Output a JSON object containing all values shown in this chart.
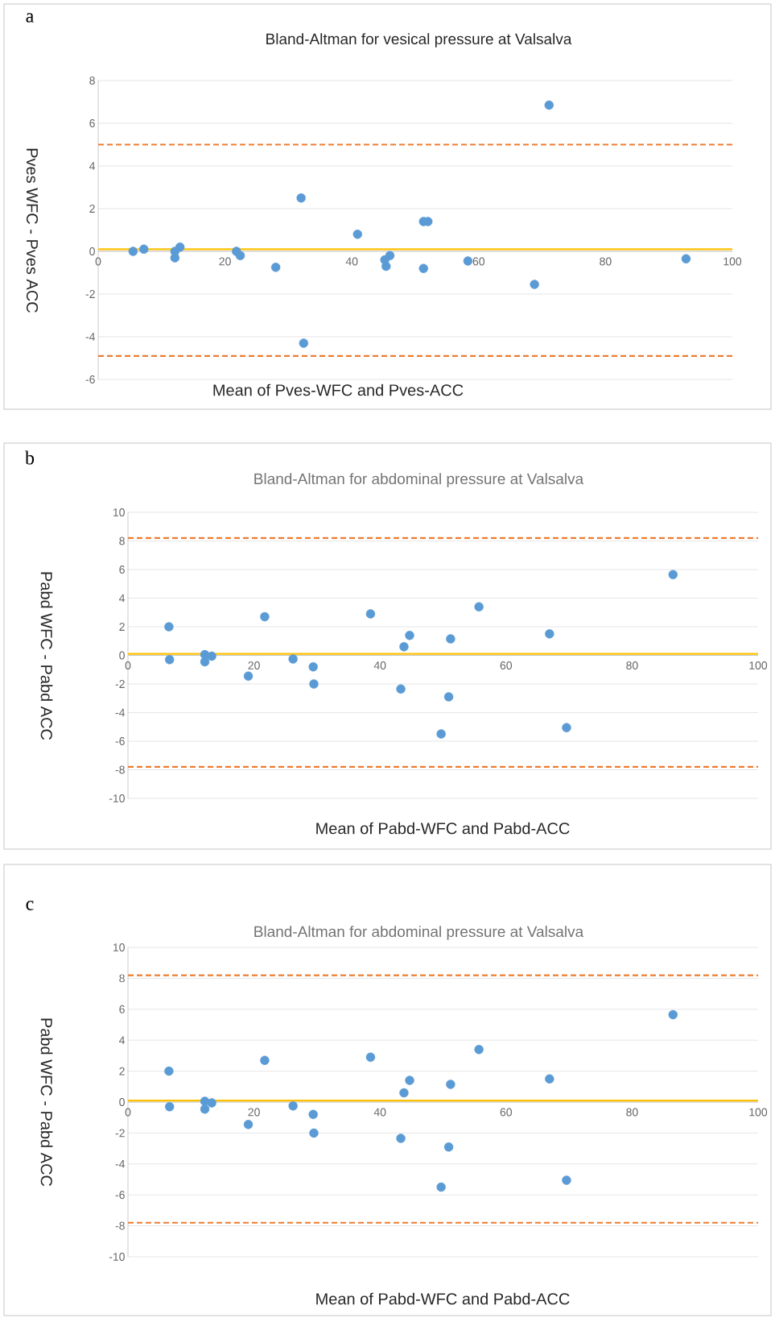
{
  "chart_data": [
    {
      "type": "scatter",
      "title": "Bland-Altman for vesical pressure at Valsalva",
      "xlabel": "Mean of Pves-WFC and Pves-ACC",
      "ylabel": "Pves WFC - Pves ACC",
      "annotations": [
        "a"
      ],
      "xlim": [
        0,
        100
      ],
      "ylim": [
        -6,
        8
      ],
      "xticks": [
        0,
        20,
        40,
        60,
        80,
        100
      ],
      "yticks": [
        -6,
        -4,
        -2,
        0,
        2,
        4,
        6,
        8
      ],
      "grid": "y",
      "marker": "circle",
      "series": [
        {
          "color": "#5b9bd5",
          "x": [
            5.5,
            7.2,
            12.1,
            12.1,
            12.9,
            21.8,
            22.4,
            28.0,
            32.0,
            32.4,
            40.9,
            45.2,
            45.4,
            46.0,
            51.3,
            51.3,
            52.0,
            58.3,
            68.8,
            71.1,
            92.7
          ],
          "values": [
            0,
            0.1,
            0,
            -0.3,
            0.2,
            0,
            -0.2,
            -0.75,
            2.5,
            -4.3,
            0.8,
            -0.4,
            -0.7,
            -0.2,
            -0.8,
            1.4,
            1.4,
            -0.45,
            -1.55,
            6.85,
            -0.35
          ]
        }
      ],
      "ref_lines": [
        {
          "axis": "y",
          "value": 5.0,
          "color": "#ed7d31",
          "line_style": "dashed"
        },
        {
          "axis": "y",
          "value": -4.9,
          "color": "#ed7d31",
          "line_style": "dashed"
        },
        {
          "axis": "y",
          "value": 0.1,
          "color": "#ffc000",
          "line_style": "solid"
        }
      ]
    },
    {
      "type": "scatter",
      "title": "Bland-Altman for abdominal pressure at Valsalva",
      "xlabel": "Mean of Pabd-WFC and Pabd-ACC",
      "ylabel": "Pabd WFC - Pabd ACC",
      "annotations": [
        "b"
      ],
      "xlim": [
        0,
        100
      ],
      "ylim": [
        -10,
        10
      ],
      "xticks": [
        0,
        20,
        40,
        60,
        80,
        100
      ],
      "yticks": [
        -10,
        -8,
        -6,
        -4,
        -2,
        0,
        2,
        4,
        6,
        8,
        10
      ],
      "grid": "y",
      "marker": "circle",
      "series": [
        {
          "color": "#5b9bd5",
          "x": [
            6.5,
            6.6,
            12.2,
            12.2,
            13.3,
            19.1,
            21.7,
            26.2,
            29.4,
            29.5,
            38.5,
            43.3,
            43.8,
            44.7,
            49.7,
            50.9,
            51.2,
            55.7,
            66.9,
            69.6,
            86.5
          ],
          "values": [
            2.0,
            -0.3,
            0.05,
            -0.45,
            -0.05,
            -1.45,
            2.7,
            -0.25,
            -0.8,
            -2.0,
            2.9,
            -2.35,
            0.6,
            1.4,
            -5.5,
            -2.9,
            1.15,
            3.4,
            1.5,
            -5.05,
            5.65
          ]
        }
      ],
      "ref_lines": [
        {
          "axis": "y",
          "value": 8.2,
          "color": "#ed7d31",
          "line_style": "dashed"
        },
        {
          "axis": "y",
          "value": -7.8,
          "color": "#ed7d31",
          "line_style": "dashed"
        },
        {
          "axis": "y",
          "value": 0.1,
          "color": "#ffc000",
          "line_style": "solid"
        }
      ]
    },
    {
      "type": "scatter",
      "title": "Bland-Altman for abdominal pressure at Valsalva",
      "xlabel": "Mean of Pabd-WFC and Pabd-ACC",
      "ylabel": "Pabd WFC - Pabd ACC",
      "annotations": [
        "c"
      ],
      "xlim": [
        0,
        100
      ],
      "ylim": [
        -10,
        10
      ],
      "xticks": [
        0,
        20,
        40,
        60,
        80,
        100
      ],
      "yticks": [
        -10,
        -8,
        -6,
        -4,
        -2,
        0,
        2,
        4,
        6,
        8,
        10
      ],
      "grid": "y",
      "marker": "circle",
      "series": [
        {
          "color": "#5b9bd5",
          "x": [
            6.5,
            6.6,
            12.2,
            12.2,
            13.3,
            19.1,
            21.7,
            26.2,
            29.4,
            29.5,
            38.5,
            43.3,
            43.8,
            44.7,
            49.7,
            50.9,
            51.2,
            55.7,
            66.9,
            69.6,
            86.5
          ],
          "values": [
            2.0,
            -0.3,
            0.05,
            -0.45,
            -0.05,
            -1.45,
            2.7,
            -0.25,
            -0.8,
            -2.0,
            2.9,
            -2.35,
            0.6,
            1.4,
            -5.5,
            -2.9,
            1.15,
            3.4,
            1.5,
            -5.05,
            5.65
          ]
        }
      ],
      "ref_lines": [
        {
          "axis": "y",
          "value": 8.2,
          "color": "#ed7d31",
          "line_style": "dashed"
        },
        {
          "axis": "y",
          "value": -7.8,
          "color": "#ed7d31",
          "line_style": "dashed"
        },
        {
          "axis": "y",
          "value": 0.1,
          "color": "#ffc000",
          "line_style": "solid"
        }
      ]
    }
  ]
}
